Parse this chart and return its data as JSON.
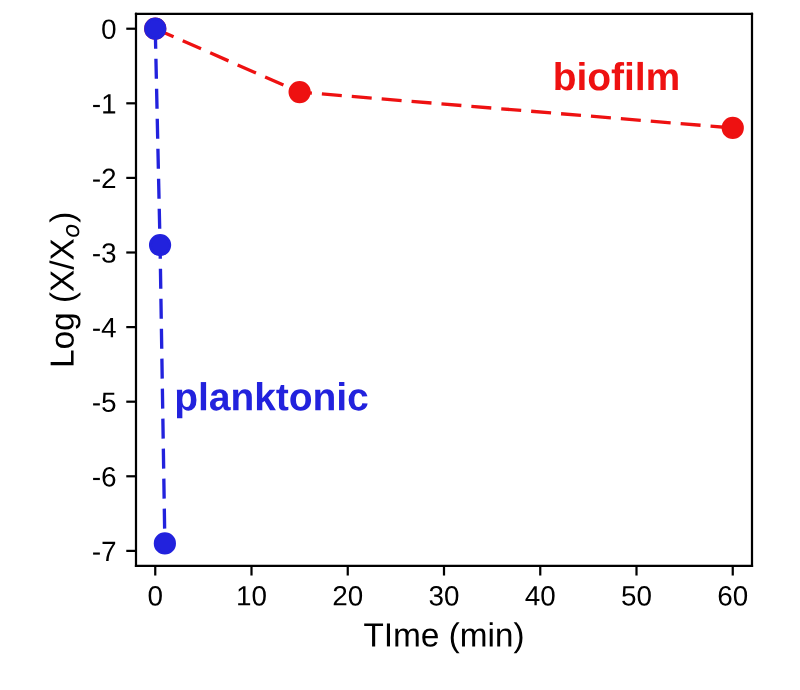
{
  "chart_data": {
    "type": "line",
    "xlabel": "TIme (min)",
    "ylabel": "Log (X/X$_{o}$)",
    "xlim": [
      -2,
      62
    ],
    "ylim": [
      -7.2,
      0.2
    ],
    "xticks": [
      0,
      10,
      20,
      30,
      40,
      50,
      60
    ],
    "yticks": [
      -7,
      -6,
      -5,
      -4,
      -3,
      -2,
      -1,
      0
    ],
    "marker": "circle",
    "line_style": "dashed",
    "grid": false,
    "legend": false,
    "series": [
      {
        "name": "biofilm",
        "color": "#ee1111",
        "x": [
          0,
          15,
          60
        ],
        "values": [
          0,
          -0.85,
          -1.33
        ]
      },
      {
        "name": "planktonic",
        "color": "#2222dd",
        "x": [
          0,
          0.5,
          1
        ],
        "values": [
          0,
          -2.9,
          -6.9
        ]
      }
    ]
  }
}
